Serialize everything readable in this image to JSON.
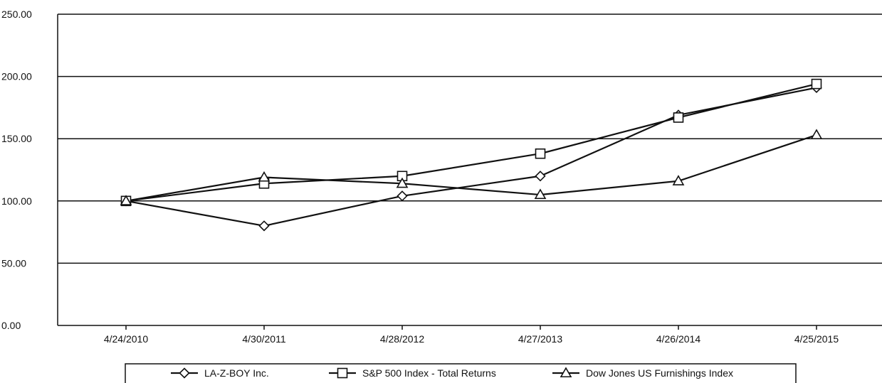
{
  "chart_data": {
    "type": "line",
    "title": "",
    "xlabel": "",
    "ylabel": "",
    "categories": [
      "4/24/2010",
      "4/30/2011",
      "4/28/2012",
      "4/27/2013",
      "4/26/2014",
      "4/25/2015"
    ],
    "ylim": [
      0,
      250
    ],
    "yticks": [
      "0.00",
      "50.00",
      "100.00",
      "150.00",
      "200.00",
      "250.00"
    ],
    "ytick_values": [
      0,
      50,
      100,
      150,
      200,
      250
    ],
    "grid": "horizontal",
    "legend_position": "bottom",
    "series": [
      {
        "name": "LA-Z-BOY Inc.",
        "marker": "diamond",
        "values": [
          100,
          80,
          104,
          120,
          169,
          191
        ]
      },
      {
        "name": "S&P 500 Index - Total Returns",
        "marker": "square",
        "values": [
          100,
          114,
          120,
          138,
          167,
          194
        ]
      },
      {
        "name": "Dow Jones US Furnishings Index",
        "marker": "triangle",
        "values": [
          100,
          119,
          114,
          105,
          116,
          153
        ]
      }
    ],
    "colors": {
      "line": "#111111",
      "grid": "#111111",
      "marker_fill": "#ffffff"
    }
  }
}
